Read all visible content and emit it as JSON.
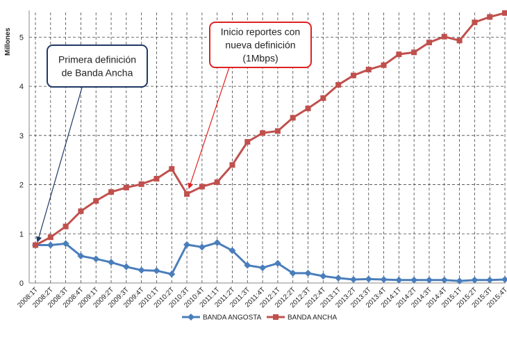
{
  "chart_data": {
    "type": "line",
    "y_label": "Millones",
    "categories": [
      "2008:1T",
      "2008:2T",
      "2008:3T",
      "2008:4T",
      "2009:1T",
      "2009:2T",
      "2009:3T",
      "2009:4T",
      "2010:1T",
      "2010:2T",
      "2010:3T",
      "2010:4T",
      "2011:1T",
      "2011:2T",
      "2011:3T",
      "2011:4T",
      "2012:1T",
      "2012:2T",
      "2012:3T",
      "2012:4T",
      "2013:1T",
      "2013:2T",
      "2013:3T",
      "2013:4T",
      "2014:1T",
      "2014:2T",
      "2014:3T",
      "2014:4T",
      "2015:1T",
      "2015:2T",
      "2015:3T",
      "2015:4T"
    ],
    "series": [
      {
        "name": "BANDA ANGOSTA",
        "color": "#4a7ebb",
        "marker": "diamond",
        "values": [
          0.77,
          0.77,
          0.8,
          0.55,
          0.49,
          0.42,
          0.33,
          0.26,
          0.25,
          0.18,
          0.78,
          0.73,
          0.82,
          0.66,
          0.36,
          0.31,
          0.4,
          0.2,
          0.2,
          0.14,
          0.1,
          0.07,
          0.08,
          0.07,
          0.06,
          0.06,
          0.06,
          0.06,
          0.04,
          0.06,
          0.06,
          0.07
        ]
      },
      {
        "name": "BANDA ANCHA",
        "color": "#c0504d",
        "marker": "square",
        "values": [
          0.77,
          0.93,
          1.15,
          1.46,
          1.67,
          1.85,
          1.94,
          2.01,
          2.12,
          2.32,
          1.81,
          1.96,
          2.05,
          2.4,
          2.87,
          3.05,
          3.09,
          3.36,
          3.55,
          3.76,
          4.03,
          4.22,
          4.34,
          4.43,
          4.65,
          4.69,
          4.89,
          5.01,
          4.93,
          5.3,
          5.41,
          5.49
        ]
      }
    ],
    "ylim": [
      0,
      5.5
    ],
    "yticks": [
      0,
      1,
      2,
      3,
      4,
      5
    ],
    "grid": true,
    "annotations": [
      {
        "lines": [
          "Primera definición",
          "de Banda Ancha"
        ],
        "color": "#1f3864"
      },
      {
        "lines": [
          "Inicio reportes con",
          "nueva definición",
          "(1Mbps)"
        ],
        "color": "#e02020"
      }
    ]
  }
}
